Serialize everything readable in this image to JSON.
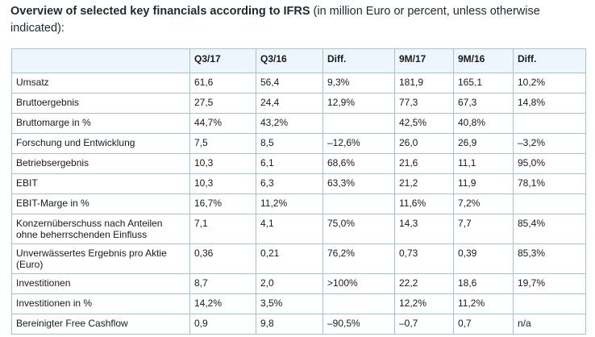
{
  "heading": {
    "bold": "Overview of selected key financials according to IFRS",
    "normal": " (in million Euro or percent, unless otherwise indicated):"
  },
  "table": {
    "columns": [
      "",
      "Q3/17",
      "Q3/16",
      "Diff.",
      "9M/17",
      "9M/16",
      "Diff."
    ],
    "rows": [
      [
        "Umsatz",
        "61,6",
        "56,4",
        "9,3%",
        "181,9",
        "165,1",
        "10,2%"
      ],
      [
        "Bruttoergebnis",
        "27,5",
        "24,4",
        "12,9%",
        "77,3",
        "67,3",
        "14,8%"
      ],
      [
        "Bruttomarge in %",
        "44,7%",
        "43,2%",
        "",
        "42,5%",
        "40,8%",
        ""
      ],
      [
        "Forschung und Entwicklung",
        "7,5",
        "8,5",
        "–12,6%",
        "26,0",
        "26,9",
        "–3,2%"
      ],
      [
        "Betriebsergebnis",
        "10,3",
        "6,1",
        "68,6%",
        "21,6",
        "11,1",
        "95,0%"
      ],
      [
        "EBIT",
        "10,3",
        "6,3",
        "63,3%",
        "21,2",
        "11,9",
        "78,1%"
      ],
      [
        "EBIT-Marge in %",
        "16,7%",
        "11,2%",
        "",
        "11,6%",
        "7,2%",
        ""
      ],
      [
        "Konzernüberschuss nach Anteilen ohne beherrschenden Einfluss",
        "7,1",
        "4,1",
        "75,0%",
        "14,3",
        "7,7",
        "85,4%"
      ],
      [
        "Unverwässertes Ergebnis pro Aktie (Euro)",
        "0,36",
        "0,21",
        "76,2%",
        "0,73",
        "0,39",
        "85,3%"
      ],
      [
        "Investitionen",
        "8,7",
        "2,0",
        ">100%",
        "22,2",
        "18,6",
        "19,7%"
      ],
      [
        "Investitionen in %",
        "14,2%",
        "3,5%",
        "",
        "12,2%",
        "11,2%",
        ""
      ],
      [
        "Bereinigter Free Cashflow",
        "0,9",
        "9,8",
        "–90,5%",
        "–0,7",
        "0,7",
        "n/a"
      ]
    ]
  }
}
